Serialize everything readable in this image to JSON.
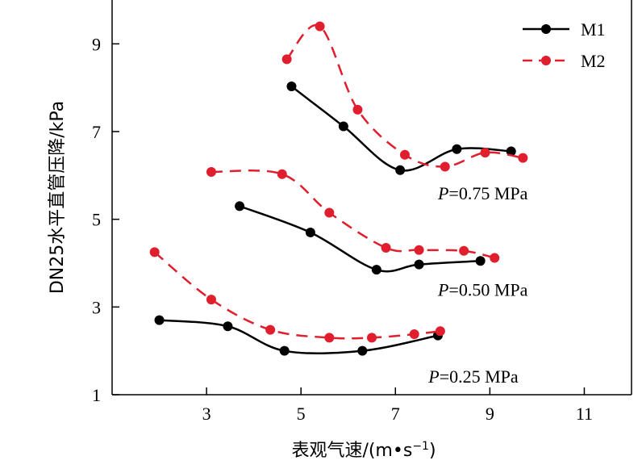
{
  "chart_data": {
    "type": "line",
    "xlabel_main": "表观气速/(m",
    "xlabel_dot": "•",
    "xlabel_s": "s",
    "xlabel_sup": "−1",
    "xlabel_end": ")",
    "ylabel": "DN25水平直管压降/kPa",
    "xlim": [
      1,
      12
    ],
    "ylim": [
      1,
      10
    ],
    "xticks": [
      3,
      5,
      7,
      9,
      11
    ],
    "yticks": [
      1,
      3,
      5,
      7,
      9
    ],
    "legend_position": "top-right",
    "grid": false,
    "series": [
      {
        "name": "M1",
        "color": "#000000",
        "dash": "solid",
        "groups": [
          {
            "x": [
              2.0,
              3.45,
              4.65,
              6.3,
              7.9
            ],
            "y": [
              2.7,
              2.56,
              2.0,
              2.0,
              2.35
            ]
          },
          {
            "x": [
              3.7,
              5.2,
              6.6,
              7.5,
              8.8
            ],
            "y": [
              5.3,
              4.7,
              3.85,
              3.97,
              4.05
            ]
          },
          {
            "x": [
              4.8,
              5.9,
              7.1,
              8.3,
              9.45
            ],
            "y": [
              8.03,
              7.12,
              6.12,
              6.6,
              6.55
            ]
          }
        ]
      },
      {
        "name": "M2",
        "color": "#e01e2d",
        "dash": "dashed",
        "groups": [
          {
            "x": [
              1.9,
              3.1,
              4.35,
              5.6,
              6.5,
              7.4,
              7.95
            ],
            "y": [
              4.25,
              3.17,
              2.48,
              2.3,
              2.3,
              2.38,
              2.45
            ]
          },
          {
            "x": [
              3.1,
              4.6,
              5.6,
              6.8,
              7.5,
              8.45,
              9.1
            ],
            "y": [
              6.08,
              6.03,
              5.15,
              4.35,
              4.3,
              4.28,
              4.12
            ]
          },
          {
            "x": [
              4.7,
              5.4,
              6.2,
              7.2,
              8.05,
              8.9,
              9.7
            ],
            "y": [
              8.65,
              9.4,
              7.5,
              6.47,
              6.2,
              6.52,
              6.4
            ]
          }
        ]
      }
    ],
    "annotations": [
      {
        "var": "P",
        "value": "=0.75 MPa",
        "x": 7.9,
        "y": 5.6
      },
      {
        "var": "P",
        "value": "=0.50 MPa",
        "x": 7.9,
        "y": 3.4
      },
      {
        "var": "P",
        "value": "=0.25 MPa",
        "x": 7.7,
        "y": 1.42
      }
    ]
  }
}
